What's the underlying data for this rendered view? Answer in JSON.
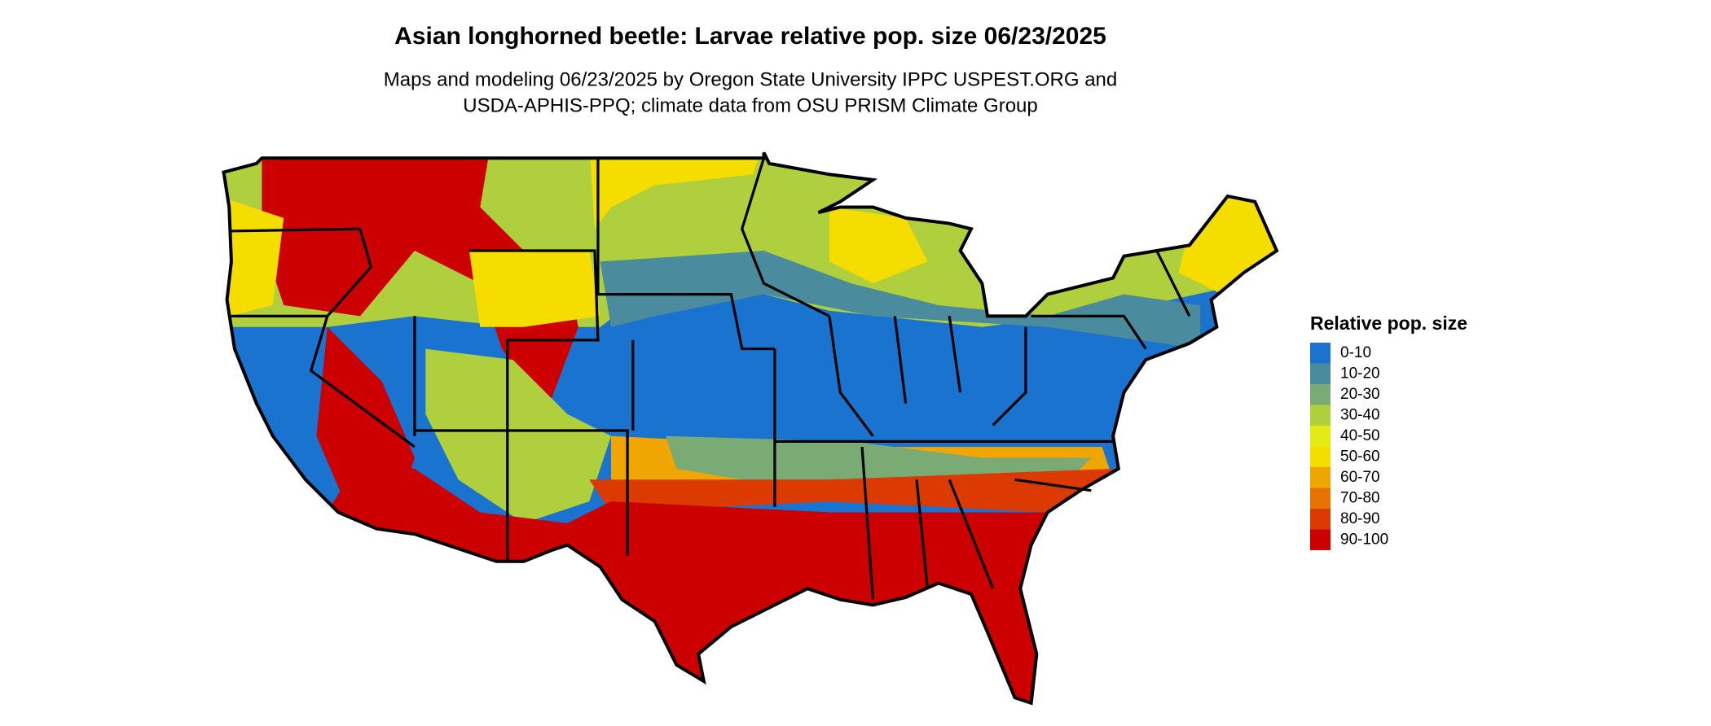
{
  "title": "Asian longhorned beetle: Larvae relative pop. size 06/23/2025",
  "subtitle": [
    "Maps and modeling 06/23/2025 by Oregon State University IPPC USPEST.ORG and",
    "USDA-APHIS-PPQ; climate data from OSU PRISM Climate Group"
  ],
  "legend": {
    "title": "Relative pop. size",
    "items": [
      {
        "label": "0-10",
        "color": "#1a74cf"
      },
      {
        "label": "10-20",
        "color": "#4a8c9e"
      },
      {
        "label": "20-30",
        "color": "#7aab74"
      },
      {
        "label": "30-40",
        "color": "#afcf3d"
      },
      {
        "label": "40-50",
        "color": "#e2ec14"
      },
      {
        "label": "50-60",
        "color": "#f6dd00"
      },
      {
        "label": "60-70",
        "color": "#efa600"
      },
      {
        "label": "70-80",
        "color": "#e77400"
      },
      {
        "label": "80-90",
        "color": "#db3a00"
      },
      {
        "label": "90-100",
        "color": "#cc0000"
      }
    ]
  }
}
